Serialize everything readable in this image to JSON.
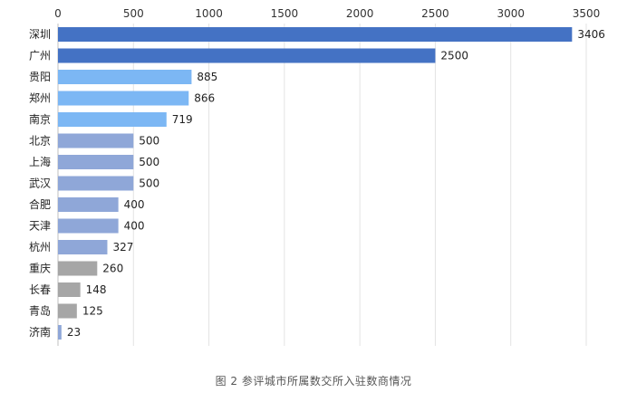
{
  "chart_data": {
    "type": "bar",
    "orientation": "horizontal",
    "categories": [
      "深圳",
      "广州",
      "贵阳",
      "郑州",
      "南京",
      "北京",
      "上海",
      "武汉",
      "合肥",
      "天津",
      "杭州",
      "重庆",
      "长春",
      "青岛",
      "济南"
    ],
    "values": [
      3406,
      2500,
      885,
      866,
      719,
      500,
      500,
      500,
      400,
      400,
      327,
      260,
      148,
      125,
      23
    ],
    "value_labels": [
      "3406",
      "2500",
      "885",
      "866",
      "719",
      "500",
      "500",
      "500",
      "400",
      "400",
      "327",
      "260",
      "148",
      "125",
      "23"
    ],
    "bar_colors": [
      "#4472C4",
      "#4472C4",
      "#7CB7F4",
      "#7CB7F4",
      "#7CB7F4",
      "#8FA7D8",
      "#8FA7D8",
      "#8FA7D8",
      "#8FA7D8",
      "#8FA7D8",
      "#8FA7D8",
      "#A6A6A6",
      "#A6A6A6",
      "#A6A6A6",
      "#8FA7D8"
    ],
    "x_ticks": [
      0,
      500,
      1000,
      1500,
      2000,
      2500,
      3000,
      3500
    ],
    "x_tick_labels": [
      "0",
      "500",
      "1000",
      "1500",
      "2000",
      "2500",
      "3000",
      "3500"
    ],
    "xlim": [
      0,
      3500
    ],
    "x_axis_position": "top",
    "grid": true,
    "title": "",
    "xlabel": "",
    "ylabel": "",
    "caption": "图 2 参评城市所属数交所入驻数商情况"
  }
}
